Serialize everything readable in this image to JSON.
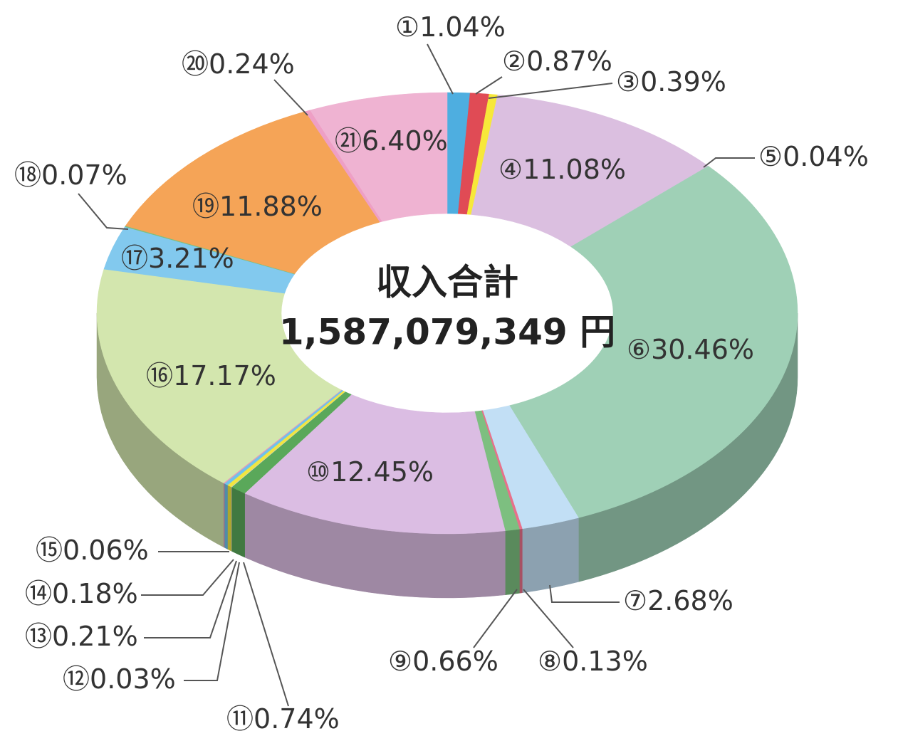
{
  "chart_data": {
    "type": "donut",
    "center_title": "収入合計",
    "center_value": "1,587,079,349 円",
    "categories": [
      "①",
      "②",
      "③",
      "④",
      "⑤",
      "⑥",
      "⑦",
      "⑧",
      "⑨",
      "⑩",
      "⑪",
      "⑫",
      "⑬",
      "⑭",
      "⑮",
      "⑯",
      "⑰",
      "⑱",
      "⑲",
      "⑳",
      "㉑"
    ],
    "values": [
      1.04,
      0.87,
      0.39,
      11.08,
      0.04,
      30.46,
      2.68,
      0.13,
      0.66,
      12.45,
      0.74,
      0.03,
      0.21,
      0.18,
      0.06,
      17.17,
      3.21,
      0.07,
      11.88,
      0.24,
      6.4
    ],
    "value_labels": [
      "1.04%",
      "0.87%",
      "0.39%",
      "11.08%",
      "0.04%",
      "30.46%",
      "2.68%",
      "0.13%",
      "0.66%",
      "12.45%",
      "0.74%",
      "0.03%",
      "0.21%",
      "0.18%",
      "0.06%",
      "17.17%",
      "3.21%",
      "0.07%",
      "11.88%",
      "0.24%",
      "6.40%"
    ],
    "colors": [
      "#4eaee0",
      "#e04b55",
      "#f7e83a",
      "#dbbfe0",
      "#9fd0b8",
      "#9fd0b6",
      "#c2dff5",
      "#e8708a",
      "#7dbf80",
      "#dbbde3",
      "#5aa85a",
      "#cfcfcf",
      "#f2e640",
      "#6fc2ea",
      "#e79ab8",
      "#d3e6ae",
      "#82c9ee",
      "#7dbf80",
      "#f5a457",
      "#ee9fc5",
      "#efb3d2"
    ]
  }
}
